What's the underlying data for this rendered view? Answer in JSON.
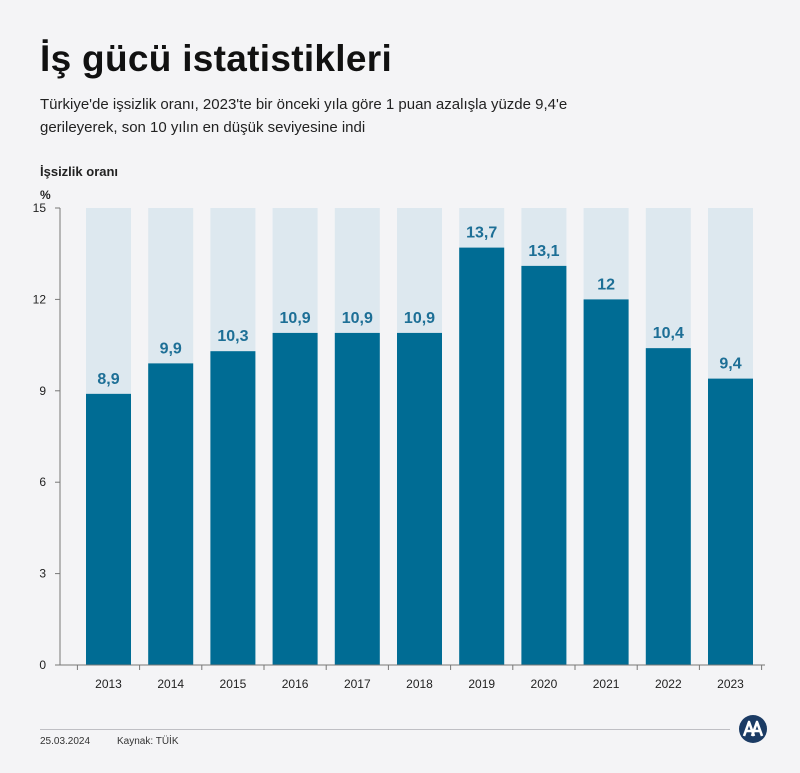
{
  "header": {
    "title": "İş gücü istatistikleri",
    "subtitle": "Türkiye'de işsizlik oranı, 2023'te bir önceki yıla göre 1 puan azalışla yüzde 9,4'e gerileyerek, son 10 yılın en düşük seviyesine indi"
  },
  "chart_data": {
    "type": "bar",
    "ylabel": "İşsizlik oranı",
    "unit": "%",
    "categories": [
      "2013",
      "2014",
      "2015",
      "2016",
      "2017",
      "2018",
      "2019",
      "2020",
      "2021",
      "2022",
      "2023"
    ],
    "values": [
      8.9,
      9.9,
      10.3,
      10.9,
      10.9,
      10.9,
      13.7,
      13.1,
      12,
      10.4,
      9.4
    ],
    "data_labels": [
      "8,9",
      "9,9",
      "10,3",
      "10,9",
      "10,9",
      "10,9",
      "13,7",
      "13,1",
      "12",
      "10,4",
      "9,4"
    ],
    "yticks": [
      0,
      3,
      6,
      9,
      12,
      15
    ],
    "ylim": [
      0,
      15
    ],
    "grid": false,
    "legend": "none",
    "colors": {
      "bar": "#006c94",
      "bar_background": "#dde8ef",
      "label": "#1d6f96",
      "axis": "#777777"
    }
  },
  "footer": {
    "date": "25.03.2024",
    "source": "Kaynak: TÜİK",
    "logo_text": "AA"
  }
}
